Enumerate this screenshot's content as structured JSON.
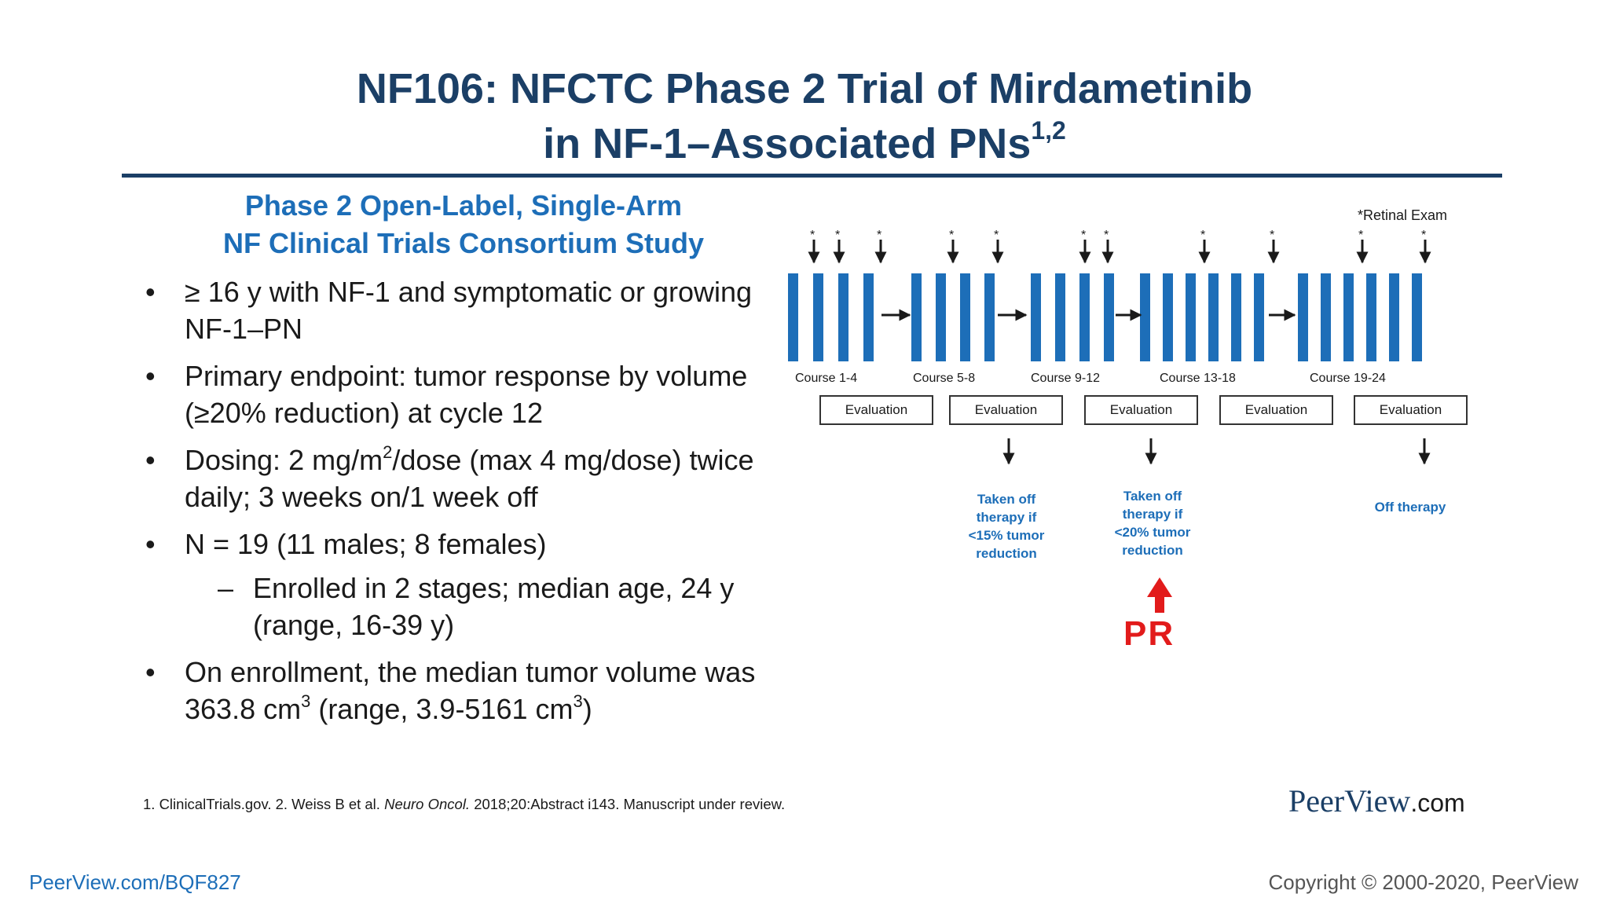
{
  "slide": {
    "title_line1": "NF106: NFCTC Phase 2 Trial of Mirdametinib",
    "title_line2": "in NF-1–Associated PNs",
    "title_refs": "1,2",
    "subtitle_line1": "Phase 2 Open-Label, Single-Arm",
    "subtitle_line2": "NF Clinical Trials Consortium Study"
  },
  "bullets": [
    {
      "marker": "•",
      "text": "≥ 16 y with NF-1 and symptomatic or growing NF-1–PN"
    },
    {
      "marker": "•",
      "text": "Primary endpoint: tumor response by volume (≥20% reduction) at cycle 12"
    },
    {
      "marker": "•",
      "text_a": "Dosing: 2 mg/m",
      "text_sup": "2",
      "text_b": "/dose (max 4 mg/dose) twice daily; 3 weeks on/1 week off"
    },
    {
      "marker": "•",
      "text": "N = 19 (11 males; 8 females)"
    },
    {
      "marker": "–",
      "text": "Enrolled in 2 stages; median age, 24 y (range, 16-39 y)"
    },
    {
      "marker": "•",
      "text_a": "On enrollment, the median tumor volume was 363.8 cm",
      "text_sup": "3",
      "text_b": " (range, 3.9-5161 cm",
      "text_sup2": "3",
      "text_c": ")"
    }
  ],
  "diagram": {
    "retinal_exam_label": "*Retinal  Exam",
    "asterisk": "*",
    "courses": [
      "Course 1-4",
      "Course 5-8",
      "Course 9-12",
      "Course 13-18",
      "Course 19-24"
    ],
    "evaluation_label": "Evaluation",
    "notes": [
      {
        "lines": [
          "Taken off",
          "therapy if",
          "<15% tumor",
          "reduction"
        ]
      },
      {
        "lines": [
          "Taken off",
          "therapy if",
          "<20% tumor",
          "reduction"
        ]
      },
      {
        "lines": [
          "Off therapy"
        ]
      }
    ],
    "pr_label": "PR",
    "colors": {
      "bar": "#1d6eb8",
      "pr": "#e21b1b",
      "note": "#1d6eb8"
    }
  },
  "footer": {
    "footnote_a": "1. ClinicalTrials.gov. 2. Weiss B et al. ",
    "footnote_journal": "Neuro Oncol.",
    "footnote_b": " 2018;20:Abstract i143. Manuscript under review.",
    "logo_main": "PeerView",
    "logo_tld": ".com",
    "url": "PeerView.com/BQF827",
    "copyright": "Copyright © 2000-2020, PeerView"
  }
}
